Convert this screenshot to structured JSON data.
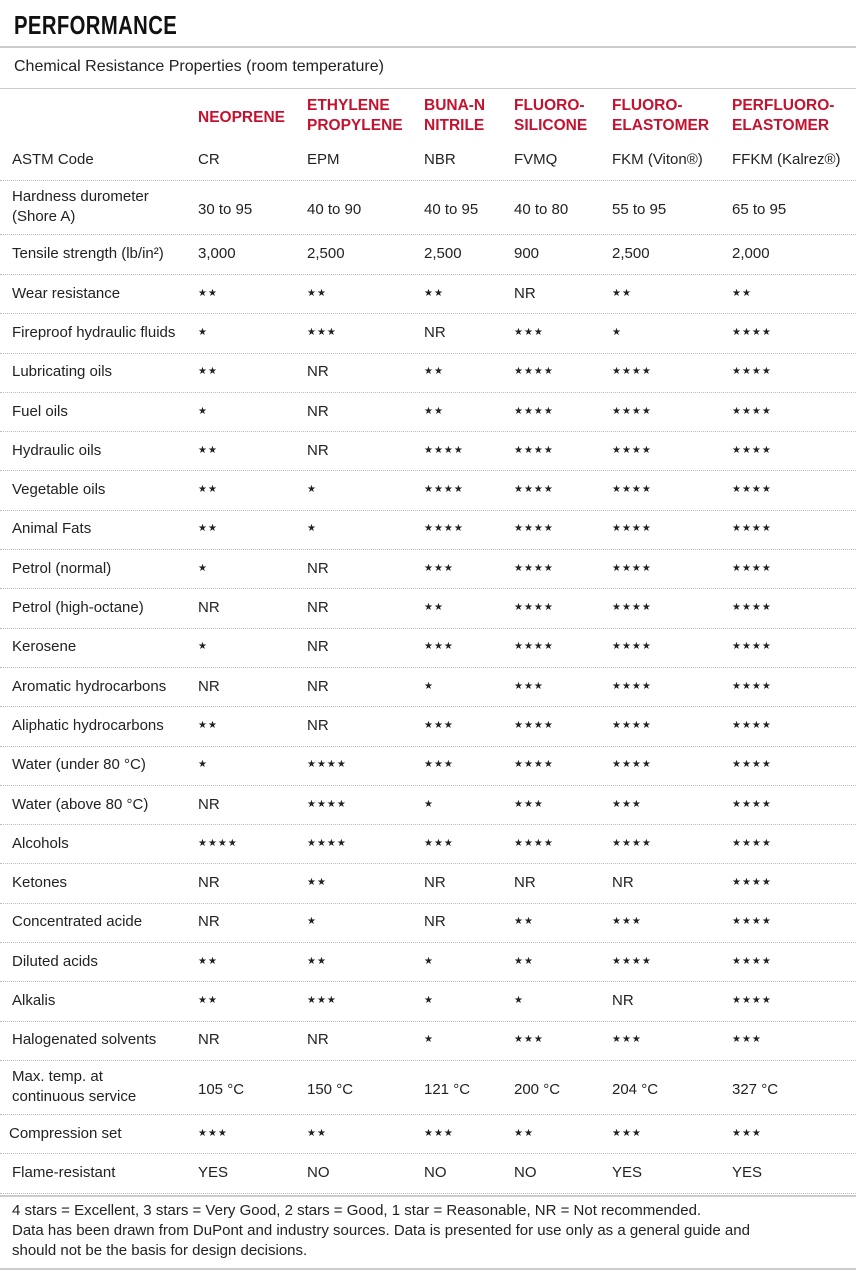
{
  "title": "PERFORMANCE",
  "subtitle": "Chemical Resistance Properties (room temperature)",
  "columns": [
    [
      "NEOPRENE"
    ],
    [
      "ETHYLENE",
      "PROPYLENE"
    ],
    [
      "BUNA-N",
      "NITRILE"
    ],
    [
      "FLUORO-",
      "SILICONE"
    ],
    [
      "FLUORO-",
      "ELASTOMER"
    ],
    [
      "PERFLUORO-",
      "ELASTOMER"
    ]
  ],
  "rows": [
    {
      "label": [
        "ASTM Code"
      ],
      "values": [
        "CR",
        "EPM",
        "NBR",
        "FVMQ",
        "FKM (Viton®)",
        "FFKM (Kalrez®)"
      ]
    },
    {
      "label": [
        "Hardness durometer",
        "(Shore A)"
      ],
      "values": [
        "30 to 95",
        "40 to 90",
        "40 to 95",
        "40 to 80",
        "55 to 95",
        "65 to 95"
      ]
    },
    {
      "label": [
        "Tensile strength (lb/in²)"
      ],
      "values": [
        "3,000",
        "2,500",
        "2,500",
        "900",
        "2,500",
        "2,000"
      ]
    },
    {
      "label": [
        "Wear resistance"
      ],
      "values": [
        "★★",
        "★★",
        "★★",
        "NR",
        "★★",
        "★★"
      ]
    },
    {
      "label": [
        "Fireproof hydraulic fluids"
      ],
      "values": [
        "★",
        "★★★",
        "NR",
        "★★★",
        "★",
        "★★★★"
      ]
    },
    {
      "label": [
        "Lubricating oils"
      ],
      "values": [
        "★★",
        "NR",
        "★★",
        "★★★★",
        "★★★★",
        "★★★★"
      ]
    },
    {
      "label": [
        "Fuel oils"
      ],
      "values": [
        "★",
        "NR",
        "★★",
        "★★★★",
        "★★★★",
        "★★★★"
      ]
    },
    {
      "label": [
        "Hydraulic oils"
      ],
      "values": [
        "★★",
        "NR",
        "★★★★",
        "★★★★",
        "★★★★",
        "★★★★"
      ]
    },
    {
      "label": [
        "Vegetable oils"
      ],
      "values": [
        "★★",
        "★",
        "★★★★",
        "★★★★",
        "★★★★",
        "★★★★"
      ]
    },
    {
      "label": [
        "Animal Fats"
      ],
      "values": [
        "★★",
        "★",
        "★★★★",
        "★★★★",
        "★★★★",
        "★★★★"
      ]
    },
    {
      "label": [
        "Petrol (normal)"
      ],
      "values": [
        "★",
        "NR",
        "★★★",
        "★★★★",
        "★★★★",
        "★★★★"
      ]
    },
    {
      "label": [
        "Petrol (high-octane)"
      ],
      "values": [
        "NR",
        "NR",
        "★★",
        "★★★★",
        "★★★★",
        "★★★★"
      ]
    },
    {
      "label": [
        "Kerosene"
      ],
      "values": [
        "★",
        "NR",
        "★★★",
        "★★★★",
        "★★★★",
        "★★★★"
      ]
    },
    {
      "label": [
        "Aromatic hydrocarbons"
      ],
      "values": [
        "NR",
        "NR",
        "★",
        "★★★",
        "★★★★",
        "★★★★"
      ]
    },
    {
      "label": [
        "Aliphatic hydrocarbons"
      ],
      "values": [
        "★★",
        "NR",
        "★★★",
        "★★★★",
        "★★★★",
        "★★★★"
      ]
    },
    {
      "label": [
        "Water (under 80 °C)"
      ],
      "values": [
        "★",
        "★★★★",
        "★★★",
        "★★★★",
        "★★★★",
        "★★★★"
      ]
    },
    {
      "label": [
        "Water (above 80 °C)"
      ],
      "values": [
        "NR",
        "★★★★",
        "★",
        "★★★",
        "★★★",
        "★★★★"
      ]
    },
    {
      "label": [
        "Alcohols"
      ],
      "values": [
        "★★★★",
        "★★★★",
        "★★★",
        "★★★★",
        "★★★★",
        "★★★★"
      ]
    },
    {
      "label": [
        "Ketones"
      ],
      "values": [
        "NR",
        "★★",
        "NR",
        "NR",
        "NR",
        "★★★★"
      ]
    },
    {
      "label": [
        "Concentrated acide"
      ],
      "values": [
        "NR",
        "★",
        "NR",
        "★★",
        "★★★",
        "★★★★"
      ]
    },
    {
      "label": [
        "Diluted acids"
      ],
      "values": [
        "★★",
        "★★",
        "★",
        "★★",
        "★★★★",
        "★★★★"
      ]
    },
    {
      "label": [
        "Alkalis"
      ],
      "values": [
        "★★",
        "★★★",
        "★",
        "★",
        "NR",
        "★★★★"
      ]
    },
    {
      "label": [
        "Halogenated solvents"
      ],
      "values": [
        "NR",
        "NR",
        "★",
        "★★★",
        "★★★",
        "★★★"
      ]
    },
    {
      "label": [
        "Max. temp. at",
        "continuous service"
      ],
      "values": [
        "105 °C",
        "150 °C",
        "121 °C",
        "200 °C",
        "204 °C",
        "327 °C"
      ]
    },
    {
      "label": [
        "Compression set"
      ],
      "values": [
        "★★★",
        "★★",
        "★★★",
        "★★",
        "★★★",
        "★★★"
      ]
    },
    {
      "label": [
        "Flame-resistant"
      ],
      "values": [
        "YES",
        "NO",
        "NO",
        "NO",
        "YES",
        "YES"
      ]
    }
  ],
  "footer": [
    "4 stars = Excellent, 3 stars = Very Good, 2 stars = Good, 1 star = Reasonable, NR = Not recommended.",
    "Data has been drawn from DuPont and industry sources. Data is presented for use only as a general guide and",
    "should not be the basis for design decisions."
  ]
}
